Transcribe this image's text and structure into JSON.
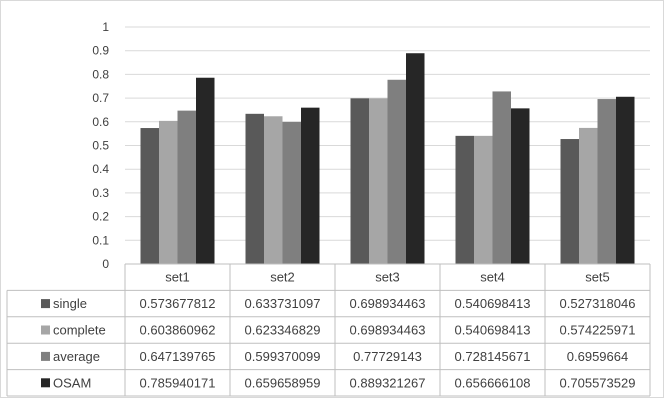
{
  "chart_data": {
    "type": "bar",
    "title": "",
    "xlabel": "",
    "ylabel": "",
    "ylim": [
      0,
      1
    ],
    "yticks": [
      "0",
      "0.1",
      "0.2",
      "0.3",
      "0.4",
      "0.5",
      "0.6",
      "0.7",
      "0.8",
      "0.9",
      "1"
    ],
    "grid": true,
    "legend": "data-table",
    "categories": [
      "set1",
      "set2",
      "set3",
      "set4",
      "set5"
    ],
    "series": [
      {
        "name": "single",
        "color": "#595959",
        "values": [
          0.573677812,
          0.633731097,
          0.698934463,
          0.540698413,
          0.527318046
        ],
        "labels": [
          "0.573677812",
          "0.633731097",
          "0.698934463",
          "0.540698413",
          "0.527318046"
        ]
      },
      {
        "name": "complete",
        "color": "#a6a6a6",
        "values": [
          0.603860962,
          0.623346829,
          0.698934463,
          0.540698413,
          0.574225971
        ],
        "labels": [
          "0.603860962",
          "0.623346829",
          "0.698934463",
          "0.540698413",
          "0.574225971"
        ]
      },
      {
        "name": "average",
        "color": "#7f7f7f",
        "values": [
          0.647139765,
          0.599370099,
          0.77729143,
          0.728145671,
          0.6959664
        ],
        "labels": [
          "0.647139765",
          "0.599370099",
          "0.77729143",
          "0.728145671",
          "0.6959664"
        ]
      },
      {
        "name": "OSAM",
        "color": "#262626",
        "values": [
          0.785940171,
          0.659658959,
          0.889321267,
          0.656666108,
          0.705573529
        ],
        "labels": [
          "0.785940171",
          "0.659658959",
          "0.889321267",
          "0.656666108",
          "0.705573529"
        ]
      }
    ]
  }
}
